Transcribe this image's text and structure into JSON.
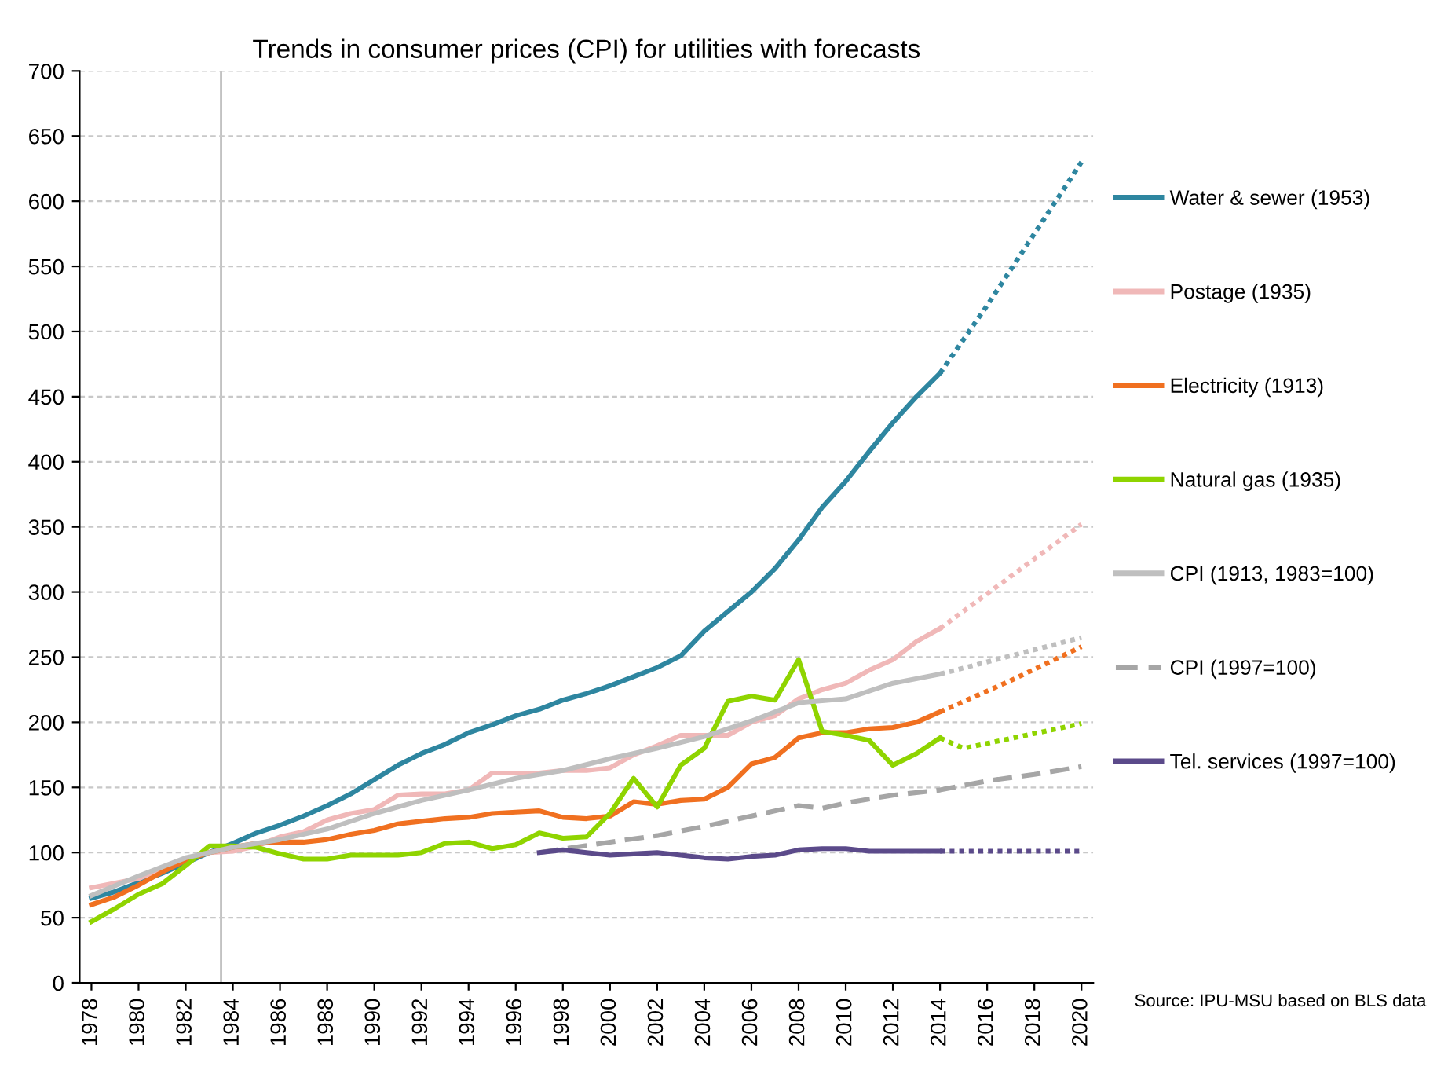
{
  "chart_data": {
    "type": "line",
    "title": "Trends in consumer prices (CPI) for utilities with forecasts",
    "xlim": [
      1977.5,
      2020.5
    ],
    "ylim": [
      0,
      700
    ],
    "xticks": [
      1978,
      1980,
      1982,
      1984,
      1986,
      1988,
      1990,
      1992,
      1994,
      1996,
      1998,
      2000,
      2002,
      2004,
      2006,
      2008,
      2010,
      2012,
      2014,
      2016,
      2018,
      2020
    ],
    "yticks": [
      0,
      50,
      100,
      150,
      200,
      250,
      300,
      350,
      400,
      450,
      500,
      550,
      600,
      650,
      700
    ],
    "grid": "y",
    "legend": "right",
    "ref_lines": [
      {
        "axis": "x",
        "value": 1983.5,
        "color": "#a0a0a0"
      }
    ],
    "annotations": [
      "Source: IPU-MSU based on BLS data"
    ],
    "series": [
      {
        "name": "Water & sewer (1953)",
        "color": "#2e86a0",
        "line_style": "solid",
        "x": [
          1978,
          1979,
          1980,
          1981,
          1982,
          1983,
          1984,
          1985,
          1986,
          1987,
          1988,
          1989,
          1990,
          1991,
          1992,
          1993,
          1994,
          1995,
          1996,
          1997,
          1998,
          1999,
          2000,
          2001,
          2002,
          2003,
          2004,
          2005,
          2006,
          2007,
          2008,
          2009,
          2010,
          2011,
          2012,
          2013,
          2014
        ],
        "values": [
          65,
          70,
          77,
          84,
          92,
          100,
          107,
          115,
          121,
          128,
          136,
          145,
          156,
          167,
          176,
          183,
          192,
          198,
          205,
          210,
          217,
          222,
          228,
          235,
          242,
          251,
          270,
          285,
          300,
          318,
          340,
          365,
          385,
          408,
          430,
          450,
          468
        ]
      },
      {
        "color": "#2e86a0",
        "line_style": "dotted",
        "x": [
          2014,
          2016,
          2018,
          2020
        ],
        "values": [
          468,
          520,
          575,
          630
        ]
      },
      {
        "name": "Postage (1935)",
        "color": "#f0b8b8",
        "line_style": "solid",
        "x": [
          1978,
          1980,
          1982,
          1983,
          1984,
          1985,
          1986,
          1987,
          1988,
          1989,
          1990,
          1991,
          1992,
          1993,
          1994,
          1995,
          1996,
          1997,
          1998,
          1999,
          2000,
          2001,
          2002,
          2003,
          2004,
          2005,
          2006,
          2007,
          2008,
          2009,
          2010,
          2011,
          2012,
          2013,
          2014
        ],
        "values": [
          73,
          80,
          95,
          100,
          101,
          105,
          112,
          116,
          125,
          130,
          133,
          144,
          145,
          145,
          148,
          161,
          161,
          161,
          163,
          163,
          165,
          175,
          182,
          190,
          190,
          190,
          200,
          205,
          218,
          225,
          230,
          240,
          248,
          262,
          272
        ]
      },
      {
        "color": "#f0b8b8",
        "line_style": "dotted",
        "x": [
          2014,
          2020
        ],
        "values": [
          272,
          352
        ]
      },
      {
        "name": "Electricity (1913)",
        "color": "#f07020",
        "line_style": "solid",
        "x": [
          1978,
          1979,
          1980,
          1981,
          1982,
          1983,
          1984,
          1985,
          1986,
          1987,
          1988,
          1989,
          1990,
          1991,
          1992,
          1993,
          1994,
          1995,
          1996,
          1997,
          1998,
          1999,
          2000,
          2001,
          2002,
          2003,
          2004,
          2005,
          2006,
          2007,
          2008,
          2009,
          2010,
          2011,
          2012,
          2013,
          2014
        ],
        "values": [
          60,
          66,
          75,
          85,
          94,
          100,
          104,
          107,
          108,
          108,
          110,
          114,
          117,
          122,
          124,
          126,
          127,
          130,
          131,
          132,
          127,
          126,
          128,
          139,
          137,
          140,
          141,
          150,
          168,
          173,
          188,
          192,
          192,
          195,
          196,
          200,
          208
        ]
      },
      {
        "color": "#f07020",
        "line_style": "dotted",
        "x": [
          2014,
          2017,
          2020
        ],
        "values": [
          208,
          232,
          258
        ]
      },
      {
        "name": "Natural gas (1935)",
        "color": "#8fd400",
        "line_style": "solid",
        "x": [
          1978,
          1979,
          1980,
          1981,
          1982,
          1983,
          1984,
          1985,
          1986,
          1987,
          1988,
          1989,
          1990,
          1991,
          1992,
          1993,
          1994,
          1995,
          1996,
          1997,
          1998,
          1999,
          2000,
          2001,
          2002,
          2003,
          2004,
          2005,
          2006,
          2007,
          2008,
          2009,
          2010,
          2011,
          2012,
          2013,
          2014
        ],
        "values": [
          47,
          57,
          68,
          76,
          90,
          105,
          105,
          104,
          99,
          95,
          95,
          98,
          98,
          98,
          100,
          107,
          108,
          103,
          106,
          115,
          111,
          112,
          130,
          157,
          135,
          167,
          180,
          216,
          220,
          217,
          248,
          193,
          190,
          186,
          167,
          176,
          188
        ]
      },
      {
        "color": "#8fd400",
        "line_style": "dotted",
        "x": [
          2014,
          2015,
          2020
        ],
        "values": [
          188,
          180,
          199
        ]
      },
      {
        "name": "CPI (1913, 1983=100)",
        "color": "#bfbfbf",
        "line_style": "solid",
        "x": [
          1978,
          1980,
          1982,
          1983,
          1984,
          1986,
          1988,
          1990,
          1992,
          1994,
          1996,
          1998,
          2000,
          2002,
          2004,
          2006,
          2008,
          2010,
          2012,
          2014
        ],
        "values": [
          67,
          82,
          96,
          100,
          104,
          110,
          118,
          130,
          140,
          148,
          157,
          163,
          172,
          180,
          189,
          201,
          215,
          218,
          230,
          237
        ]
      },
      {
        "color": "#bfbfbf",
        "line_style": "dotted",
        "x": [
          2014,
          2020
        ],
        "values": [
          237,
          265
        ]
      },
      {
        "name": "CPI (1997=100)",
        "color": "#a6a6a6",
        "line_style": "dashed",
        "x": [
          1997,
          2000,
          2002,
          2004,
          2006,
          2008,
          2009,
          2010,
          2012,
          2014,
          2016,
          2018,
          2020
        ],
        "values": [
          100,
          108,
          113,
          120,
          128,
          136,
          134,
          138,
          144,
          148,
          155,
          160,
          166
        ]
      },
      {
        "name": "Tel. services (1997=100)",
        "color": "#5b4a8a",
        "line_style": "solid",
        "x": [
          1997,
          1998,
          1999,
          2000,
          2001,
          2002,
          2003,
          2004,
          2005,
          2006,
          2007,
          2008,
          2009,
          2010,
          2011,
          2012,
          2013,
          2014
        ],
        "values": [
          100,
          102,
          100,
          98,
          99,
          100,
          98,
          96,
          95,
          97,
          98,
          102,
          103,
          103,
          101,
          101,
          101,
          101
        ]
      },
      {
        "color": "#5b4a8a",
        "line_style": "dotted",
        "x": [
          2014,
          2020
        ],
        "values": [
          101,
          101
        ]
      }
    ]
  }
}
